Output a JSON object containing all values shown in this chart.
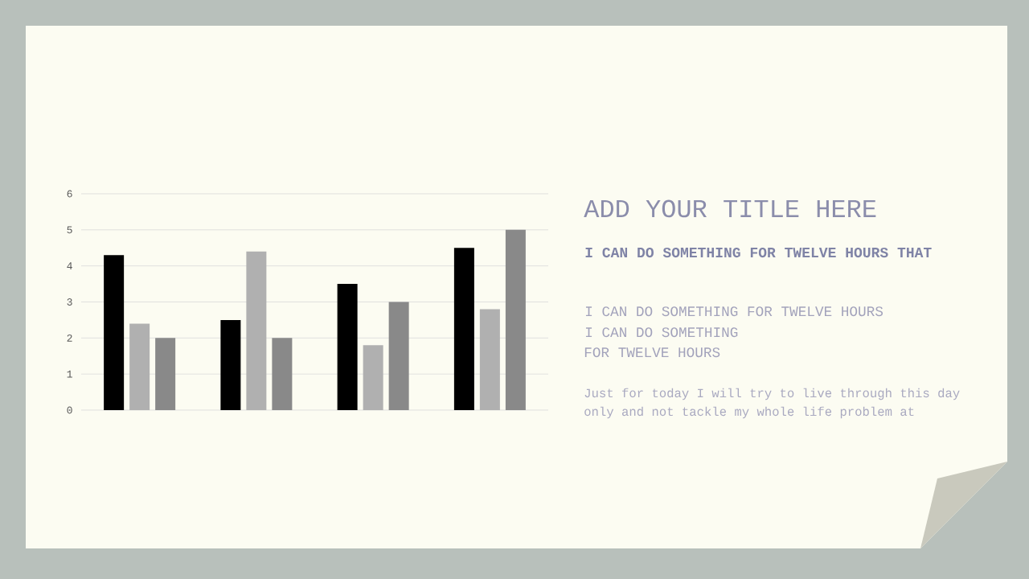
{
  "chart_data": {
    "type": "bar",
    "title": "ADD YOUR TITLE HERE",
    "subtitle": "I CAN DO SOMETHING FOR TWELVE HOURS THAT",
    "annotations": [
      "I CAN DO SOMETHING FOR TWELVE HOURS",
      "I CAN DO SOMETHING",
      "FOR TWELVE HOURS",
      "Just for today I will try to live through this day",
      "only and not tackle my whole life problem at"
    ],
    "categories": [
      null,
      null,
      null,
      null
    ],
    "series": [
      {
        "color": "#000000",
        "values": [
          4.3,
          2.5,
          3.5,
          4.5
        ]
      },
      {
        "color": "#b0b0b0",
        "values": [
          2.4,
          4.4,
          1.8,
          2.8
        ]
      },
      {
        "color": "#898989",
        "values": [
          2,
          2,
          3,
          5
        ]
      }
    ],
    "ylim": [
      0,
      6
    ],
    "yticks": [
      0,
      1,
      2,
      3,
      4,
      5,
      6
    ],
    "grid": "y"
  }
}
